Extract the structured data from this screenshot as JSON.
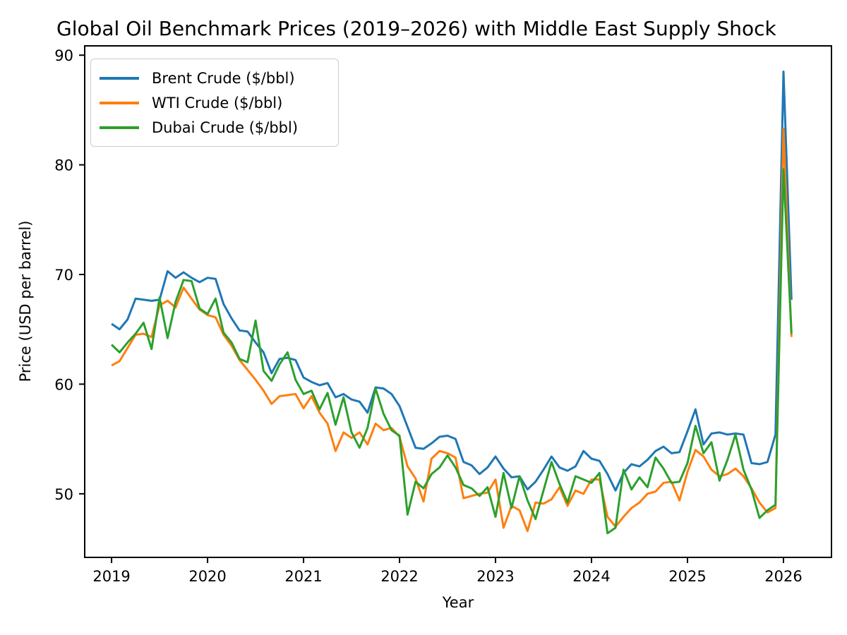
{
  "chart_data": {
    "type": "line",
    "title": "Global Oil Benchmark Prices (2019–2026) with Middle East Supply Shock",
    "xlabel": "Year",
    "ylabel": "Price (USD per barrel)",
    "grid": false,
    "legend_position": "upper left",
    "x_ticks": [
      2019,
      2020,
      2021,
      2022,
      2023,
      2024,
      2025,
      2026
    ],
    "x_tick_labels": [
      "2019",
      "2020",
      "2021",
      "2022",
      "2023",
      "2024",
      "2025",
      "2026"
    ],
    "y_ticks": [
      50,
      60,
      70,
      80,
      90
    ],
    "y_tick_labels": [
      "50",
      "60",
      "70",
      "80",
      "90"
    ],
    "xlim": [
      2018.72,
      2026.5
    ],
    "ylim": [
      44.2,
      90.85
    ],
    "months": [
      "2019-01",
      "2019-02",
      "2019-03",
      "2019-04",
      "2019-05",
      "2019-06",
      "2019-07",
      "2019-08",
      "2019-09",
      "2019-10",
      "2019-11",
      "2019-12",
      "2020-01",
      "2020-02",
      "2020-03",
      "2020-04",
      "2020-05",
      "2020-06",
      "2020-07",
      "2020-08",
      "2020-09",
      "2020-10",
      "2020-11",
      "2020-12",
      "2021-01",
      "2021-02",
      "2021-03",
      "2021-04",
      "2021-05",
      "2021-06",
      "2021-07",
      "2021-08",
      "2021-09",
      "2021-10",
      "2021-11",
      "2021-12",
      "2022-01",
      "2022-02",
      "2022-03",
      "2022-04",
      "2022-05",
      "2022-06",
      "2022-07",
      "2022-08",
      "2022-09",
      "2022-10",
      "2022-11",
      "2022-12",
      "2023-01",
      "2023-02",
      "2023-03",
      "2023-04",
      "2023-05",
      "2023-06",
      "2023-07",
      "2023-08",
      "2023-09",
      "2023-10",
      "2023-11",
      "2023-12",
      "2024-01",
      "2024-02",
      "2024-03",
      "2024-04",
      "2024-05",
      "2024-06",
      "2024-07",
      "2024-08",
      "2024-09",
      "2024-10",
      "2024-11",
      "2024-12",
      "2025-01",
      "2025-02",
      "2025-03",
      "2025-04",
      "2025-05",
      "2025-06",
      "2025-07",
      "2025-08",
      "2025-09",
      "2025-10",
      "2025-11",
      "2025-12",
      "2026-01",
      "2026-02"
    ],
    "series": [
      {
        "name": "Brent Crude ($/bbl)",
        "color": "#1f77b4",
        "values": [
          65.5,
          65.0,
          65.9,
          67.8,
          67.7,
          67.6,
          67.7,
          70.3,
          69.7,
          70.2,
          69.7,
          69.3,
          69.7,
          69.6,
          67.3,
          66.0,
          64.9,
          64.8,
          63.8,
          62.9,
          61.0,
          62.3,
          62.4,
          62.2,
          60.6,
          60.2,
          59.9,
          60.1,
          58.8,
          59.1,
          58.6,
          58.4,
          57.4,
          59.7,
          59.6,
          59.1,
          58.0,
          56.1,
          54.2,
          54.1,
          54.6,
          55.2,
          55.3,
          55.0,
          52.9,
          52.6,
          51.8,
          52.4,
          53.4,
          52.3,
          51.5,
          51.6,
          50.4,
          51.1,
          52.2,
          53.4,
          52.4,
          52.1,
          52.5,
          53.9,
          53.2,
          53.0,
          51.8,
          50.3,
          51.9,
          52.7,
          52.5,
          53.1,
          53.9,
          54.3,
          53.7,
          53.8,
          55.7,
          57.7,
          54.5,
          55.5,
          55.6,
          55.4,
          55.5,
          55.4,
          52.8,
          52.7,
          52.9,
          55.4,
          88.5,
          67.7
        ]
      },
      {
        "name": "WTI Crude ($/bbl)",
        "color": "#ff7f0e",
        "values": [
          61.7,
          62.1,
          63.3,
          64.5,
          64.6,
          64.3,
          67.2,
          67.6,
          67.0,
          68.8,
          67.8,
          66.8,
          66.3,
          66.1,
          64.5,
          63.5,
          62.2,
          61.3,
          60.4,
          59.4,
          58.2,
          58.9,
          59.0,
          59.1,
          57.8,
          58.9,
          57.4,
          56.4,
          53.9,
          55.6,
          55.1,
          55.6,
          54.5,
          56.4,
          55.8,
          56.0,
          55.2,
          52.5,
          51.4,
          49.3,
          53.2,
          53.9,
          53.7,
          53.3,
          49.6,
          49.8,
          50.0,
          50.1,
          51.3,
          46.9,
          48.9,
          48.5,
          46.6,
          49.2,
          49.1,
          49.5,
          50.6,
          48.9,
          50.3,
          50.0,
          51.3,
          51.3,
          47.9,
          47.0,
          47.9,
          48.7,
          49.2,
          50.0,
          50.2,
          51.0,
          51.1,
          49.4,
          52.0,
          54.0,
          53.4,
          52.2,
          51.6,
          51.8,
          52.3,
          51.6,
          50.5,
          49.2,
          48.3,
          48.7,
          83.3,
          64.3
        ]
      },
      {
        "name": "Dubai Crude ($/bbl)",
        "color": "#2ca02c",
        "values": [
          63.6,
          62.9,
          63.8,
          64.6,
          65.6,
          63.2,
          67.9,
          64.2,
          67.5,
          69.5,
          69.4,
          66.9,
          66.4,
          67.8,
          64.7,
          63.8,
          62.3,
          62.0,
          65.8,
          61.2,
          60.3,
          61.8,
          62.9,
          60.4,
          59.1,
          59.4,
          57.7,
          59.2,
          56.3,
          58.8,
          55.6,
          54.2,
          56.0,
          59.6,
          57.3,
          55.8,
          55.3,
          48.1,
          51.1,
          50.5,
          51.8,
          52.4,
          53.5,
          52.4,
          50.8,
          50.5,
          49.8,
          50.6,
          47.9,
          51.9,
          48.7,
          51.6,
          49.4,
          47.7,
          50.3,
          52.9,
          50.9,
          49.2,
          51.6,
          51.3,
          51.0,
          51.9,
          46.4,
          46.9,
          52.2,
          50.4,
          51.5,
          50.6,
          53.3,
          52.3,
          51.0,
          51.1,
          52.8,
          56.2,
          53.7,
          54.7,
          51.2,
          53.1,
          55.4,
          52.2,
          50.4,
          47.8,
          48.5,
          49.0,
          79.6,
          64.6
        ]
      }
    ]
  }
}
